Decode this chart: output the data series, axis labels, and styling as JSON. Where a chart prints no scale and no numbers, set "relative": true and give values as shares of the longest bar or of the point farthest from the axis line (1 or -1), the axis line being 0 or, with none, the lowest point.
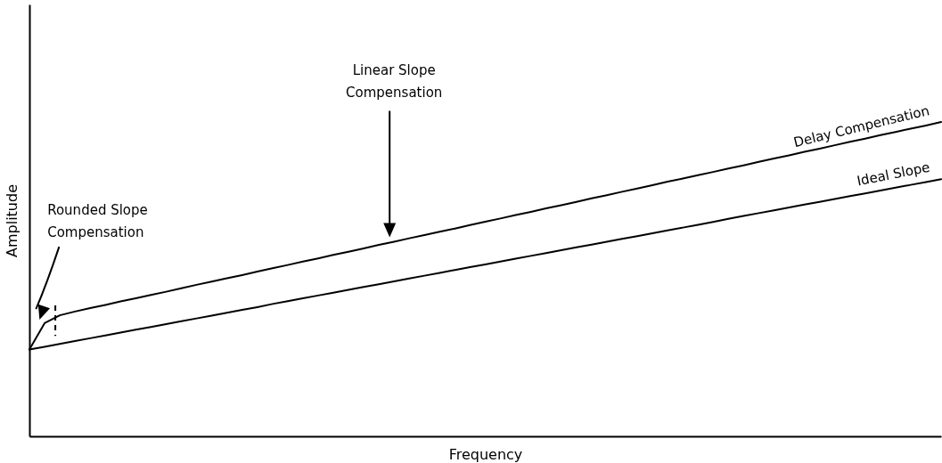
{
  "chart_data": {
    "type": "line",
    "relative": true,
    "xlabel": "Frequency",
    "ylabel": "Amplitude",
    "tick_labels": false,
    "grid": false,
    "legend": false,
    "marker": "none",
    "line_style": "solid",
    "categories": [
      null,
      null,
      null,
      null,
      null,
      null,
      null,
      null,
      null,
      null,
      null,
      null,
      null,
      null,
      null,
      null,
      null,
      null,
      null,
      null,
      null,
      null,
      null,
      null,
      null,
      null,
      null,
      null,
      null,
      null,
      null,
      null,
      null,
      null,
      null,
      null,
      null,
      null,
      null,
      null,
      null,
      null,
      null,
      null,
      null,
      null,
      null,
      null,
      null,
      null,
      null,
      null,
      null,
      null,
      null,
      null,
      null,
      null,
      null,
      null,
      null
    ],
    "series": [
      {
        "name": "Delay Compensation",
        "color": "#000000",
        "values": [
          0.276,
          0.36,
          0.385,
          0.397,
          0.408,
          0.418,
          0.429,
          0.439,
          0.45,
          0.46,
          0.471,
          0.482,
          0.492,
          0.503,
          0.513,
          0.524,
          0.535,
          0.545,
          0.556,
          0.566,
          0.577,
          0.587,
          0.598,
          0.609,
          0.619,
          0.63,
          0.64,
          0.651,
          0.661,
          0.672,
          0.683,
          0.693,
          0.704,
          0.714,
          0.725,
          0.735,
          0.746,
          0.757,
          0.767,
          0.778,
          0.788,
          0.799,
          0.81,
          0.82,
          0.831,
          0.841,
          0.852,
          0.862,
          0.873,
          0.884,
          0.894,
          0.905,
          0.915,
          0.926,
          0.937,
          0.947,
          0.958,
          0.968,
          0.979,
          0.989,
          1.0
        ]
      },
      {
        "name": "Ideal Slope",
        "color": "#000000",
        "values": [
          0.276,
          0.285,
          0.294,
          0.303,
          0.312,
          0.321,
          0.33,
          0.339,
          0.348,
          0.357,
          0.366,
          0.375,
          0.384,
          0.393,
          0.402,
          0.411,
          0.421,
          0.43,
          0.439,
          0.448,
          0.457,
          0.466,
          0.475,
          0.484,
          0.493,
          0.502,
          0.511,
          0.52,
          0.529,
          0.538,
          0.547,
          0.556,
          0.565,
          0.574,
          0.583,
          0.592,
          0.601,
          0.61,
          0.619,
          0.628,
          0.637,
          0.646,
          0.655,
          0.664,
          0.673,
          0.682,
          0.692,
          0.701,
          0.71,
          0.719,
          0.728,
          0.737,
          0.746,
          0.755,
          0.764,
          0.773,
          0.782,
          0.791,
          0.8,
          0.809,
          0.818
        ]
      }
    ],
    "annotations": [
      "Linear Slope\nCompensation",
      "Rounded Slope\nCompensation"
    ]
  }
}
